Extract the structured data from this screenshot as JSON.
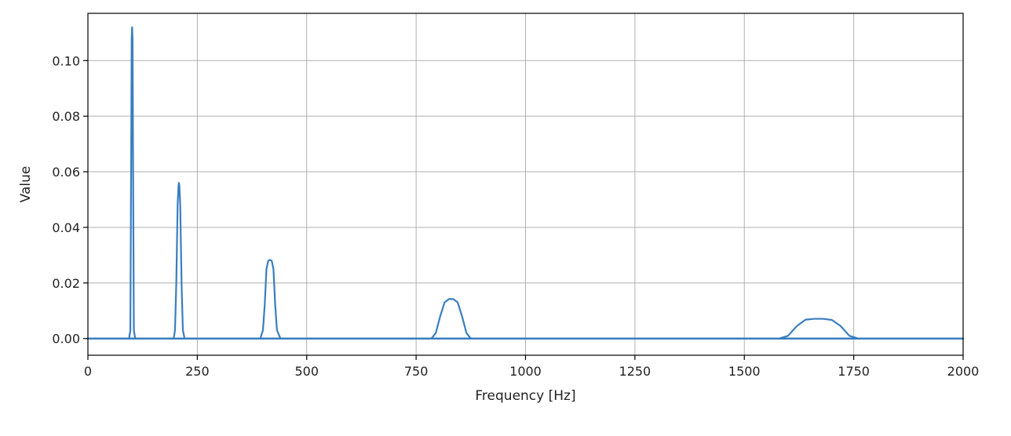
{
  "chart_data": {
    "type": "line",
    "title": "",
    "xlabel": "Frequency [Hz]",
    "ylabel": "Value",
    "xlim": [
      0,
      2000
    ],
    "ylim": [
      -0.006,
      0.117
    ],
    "xticks": [
      0,
      250,
      500,
      750,
      1000,
      1250,
      1500,
      1750,
      2000
    ],
    "xtick_labels": [
      "0",
      "250",
      "500",
      "750",
      "1000",
      "1250",
      "1500",
      "1750",
      "2000"
    ],
    "yticks": [
      0.0,
      0.02,
      0.04,
      0.06,
      0.08,
      0.1
    ],
    "ytick_labels": [
      "0.00",
      "0.02",
      "0.04",
      "0.06",
      "0.08",
      "0.10"
    ],
    "grid": true,
    "legend": false,
    "series": [
      {
        "color": "#3a7ebf",
        "x": [
          0,
          94,
          97,
          99,
          100,
          101,
          102,
          103,
          105,
          108,
          2000
        ],
        "y": [
          0,
          0,
          0.003,
          0.07,
          0.108,
          0.112,
          0.108,
          0.07,
          0.003,
          0,
          0
        ]
      },
      {
        "color": "#3a7ebf",
        "x": [
          0,
          196,
          199,
          202,
          205,
          207,
          208,
          209,
          211,
          214,
          217,
          221,
          2000
        ],
        "y": [
          0,
          0,
          0.003,
          0.02,
          0.048,
          0.055,
          0.056,
          0.055,
          0.048,
          0.02,
          0.003,
          0,
          0
        ]
      },
      {
        "color": "#3a7ebf",
        "x": [
          0,
          394,
          400,
          404,
          408,
          412,
          416,
          420,
          424,
          428,
          432,
          440,
          2000
        ],
        "y": [
          0,
          0,
          0.003,
          0.012,
          0.025,
          0.028,
          0.0283,
          0.028,
          0.025,
          0.012,
          0.003,
          0,
          0
        ]
      },
      {
        "color": "#3a7ebf",
        "x": [
          0,
          785,
          795,
          805,
          815,
          825,
          835,
          845,
          855,
          865,
          875,
          2000
        ],
        "y": [
          0,
          0,
          0.002,
          0.008,
          0.013,
          0.0142,
          0.0142,
          0.013,
          0.008,
          0.002,
          0,
          0
        ]
      },
      {
        "color": "#3a7ebf",
        "x": [
          0,
          1580,
          1600,
          1620,
          1640,
          1660,
          1680,
          1700,
          1720,
          1740,
          1760,
          2000
        ],
        "y": [
          0,
          0,
          0.001,
          0.0045,
          0.0068,
          0.0071,
          0.0071,
          0.0067,
          0.0045,
          0.001,
          0,
          0
        ]
      }
    ]
  }
}
